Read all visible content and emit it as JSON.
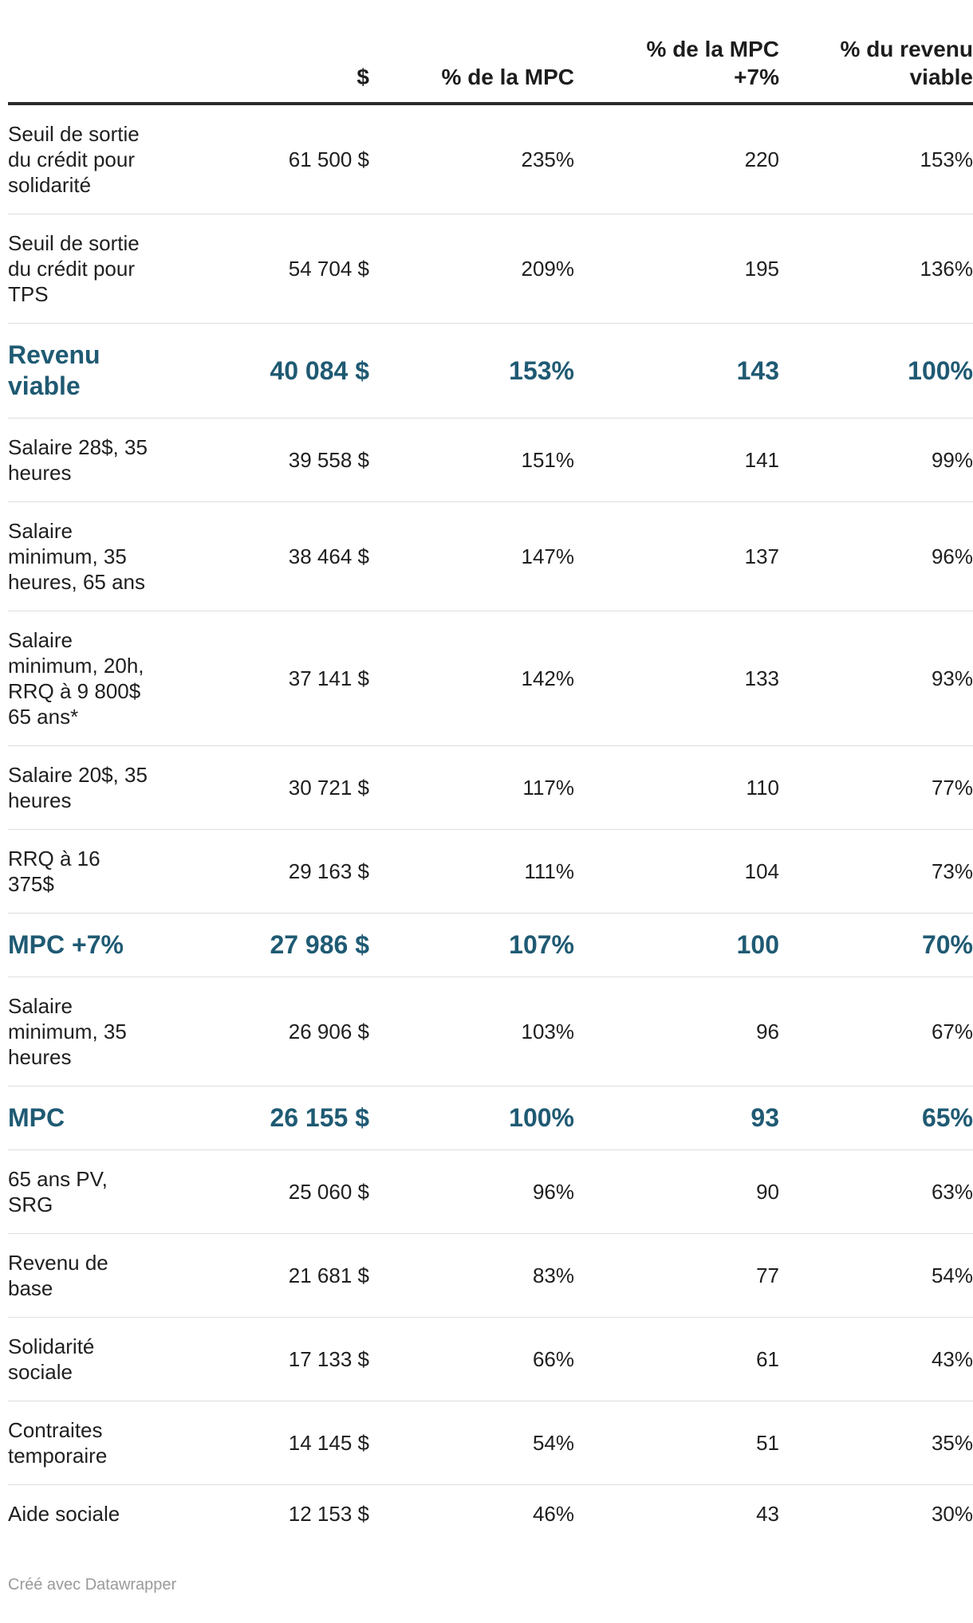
{
  "chart_data": {
    "type": "table",
    "columns": [
      "",
      "$",
      "% de la MPC",
      "% de la MPC +7%",
      "% du revenu viable"
    ],
    "header_lines": [
      [
        ""
      ],
      [
        "$"
      ],
      [
        "% de la MPC"
      ],
      [
        "% de la MPC",
        "+7%"
      ],
      [
        "% du revenu",
        "viable"
      ]
    ],
    "rows": [
      {
        "label_lines": [
          "Seuil de sortie",
          "du crédit pour",
          "solidarité"
        ],
        "dollars": "61 500 $",
        "pct_mpc": "235%",
        "pct_mpc7": "220",
        "pct_viable": "153%",
        "highlight": false
      },
      {
        "label_lines": [
          "Seuil de sortie",
          "du crédit pour",
          "TPS"
        ],
        "dollars": "54 704 $",
        "pct_mpc": "209%",
        "pct_mpc7": "195",
        "pct_viable": "136%",
        "highlight": false
      },
      {
        "label_lines": [
          "Revenu",
          "viable"
        ],
        "dollars": "40 084 $",
        "pct_mpc": "153%",
        "pct_mpc7": "143",
        "pct_viable": "100%",
        "highlight": true
      },
      {
        "label_lines": [
          "Salaire 28$, 35",
          "heures"
        ],
        "dollars": "39 558 $",
        "pct_mpc": "151%",
        "pct_mpc7": "141",
        "pct_viable": "99%",
        "highlight": false
      },
      {
        "label_lines": [
          "Salaire",
          "minimum, 35",
          "heures, 65 ans"
        ],
        "dollars": "38 464 $",
        "pct_mpc": "147%",
        "pct_mpc7": "137",
        "pct_viable": "96%",
        "highlight": false
      },
      {
        "label_lines": [
          "Salaire",
          "minimum, 20h,",
          "RRQ à 9 800$",
          "65 ans*"
        ],
        "dollars": "37 141 $",
        "pct_mpc": "142%",
        "pct_mpc7": "133",
        "pct_viable": "93%",
        "highlight": false
      },
      {
        "label_lines": [
          "Salaire 20$, 35",
          "heures"
        ],
        "dollars": "30 721 $",
        "pct_mpc": "117%",
        "pct_mpc7": "110",
        "pct_viable": "77%",
        "highlight": false
      },
      {
        "label_lines": [
          "RRQ à 16",
          "375$"
        ],
        "dollars": "29 163 $",
        "pct_mpc": "111%",
        "pct_mpc7": "104",
        "pct_viable": "73%",
        "highlight": false
      },
      {
        "label_lines": [
          "MPC +7%"
        ],
        "dollars": "27 986 $",
        "pct_mpc": "107%",
        "pct_mpc7": "100",
        "pct_viable": "70%",
        "highlight": true
      },
      {
        "label_lines": [
          "Salaire",
          "minimum, 35",
          "heures"
        ],
        "dollars": "26 906 $",
        "pct_mpc": "103%",
        "pct_mpc7": "96",
        "pct_viable": "67%",
        "highlight": false
      },
      {
        "label_lines": [
          "MPC"
        ],
        "dollars": "26 155 $",
        "pct_mpc": "100%",
        "pct_mpc7": "93",
        "pct_viable": "65%",
        "highlight": true
      },
      {
        "label_lines": [
          "65 ans PV,",
          "SRG"
        ],
        "dollars": "25 060 $",
        "pct_mpc": "96%",
        "pct_mpc7": "90",
        "pct_viable": "63%",
        "highlight": false
      },
      {
        "label_lines": [
          "Revenu de",
          "base"
        ],
        "dollars": "21 681 $",
        "pct_mpc": "83%",
        "pct_mpc7": "77",
        "pct_viable": "54%",
        "highlight": false
      },
      {
        "label_lines": [
          "Solidarité",
          "sociale"
        ],
        "dollars": "17 133 $",
        "pct_mpc": "66%",
        "pct_mpc7": "61",
        "pct_viable": "43%",
        "highlight": false
      },
      {
        "label_lines": [
          "Contraites",
          "temporaire"
        ],
        "dollars": "14 145 $",
        "pct_mpc": "54%",
        "pct_mpc7": "51",
        "pct_viable": "35%",
        "highlight": false
      },
      {
        "label_lines": [
          "Aide sociale"
        ],
        "dollars": "12 153 $",
        "pct_mpc": "46%",
        "pct_mpc7": "43",
        "pct_viable": "30%",
        "highlight": false
      }
    ]
  },
  "colors": {
    "highlight_text": "#1f5a73",
    "body_text": "#1f1f1f",
    "header_rule": "#2a2a2a",
    "row_rule": "#dedede",
    "footer_text": "#9a9a9a"
  },
  "footer": {
    "credit": "Créé avec Datawrapper"
  }
}
